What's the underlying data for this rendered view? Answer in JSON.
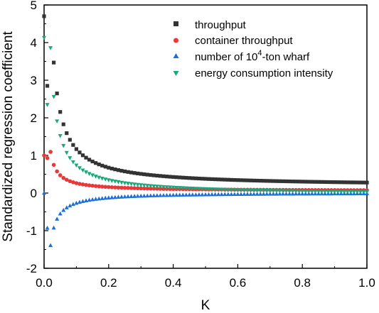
{
  "chart_data": {
    "type": "scatter",
    "xlabel": "K",
    "ylabel": "Standardized regression coefficient",
    "xlim": [
      0.0,
      1.0
    ],
    "ylim": [
      -2,
      5
    ],
    "xticks": [
      "0.0",
      "0.2",
      "0.4",
      "0.6",
      "0.8",
      "1.0"
    ],
    "yticks": [
      "-2",
      "-1",
      "0",
      "1",
      "2",
      "3",
      "4",
      "5"
    ],
    "grid": false,
    "legend_position": "top-right",
    "series": [
      {
        "name": "throughput",
        "marker": "square",
        "color": "#333333",
        "start": 4.7,
        "asymptote": 0.18,
        "amplitude": 0.099,
        "offset": 0.0001,
        "first_marker": 2.85
      },
      {
        "name": "container throughput",
        "marker": "circle",
        "color": "#e8383a",
        "start": 1.0,
        "asymptote": 0.055,
        "amplitude": 0.0209,
        "offset": 0.0001,
        "first_marker": 0.93
      },
      {
        "name": "number of 10⁴-ton wharf",
        "marker": "triangle-up",
        "color": "#1a6fd8",
        "start": 0.0,
        "asymptote": 0.015,
        "amplitude": -0.0283,
        "offset": 0.0001,
        "first_marker": -0.93
      },
      {
        "name": "energy consumption intensity",
        "marker": "triangle-down",
        "color": "#1aa87a",
        "start": 4.13,
        "asymptote": -0.045,
        "amplitude": 0.0785,
        "offset": 0.0001,
        "first_marker": 2.35
      }
    ]
  },
  "legend": {
    "label_1_pre": "throughput",
    "label_2_pre": "container throughput",
    "label_3_pre": "number of  10",
    "label_3_sup": "4",
    "label_3_post": "-ton wharf",
    "label_4_pre": "energy consumption intensity"
  }
}
